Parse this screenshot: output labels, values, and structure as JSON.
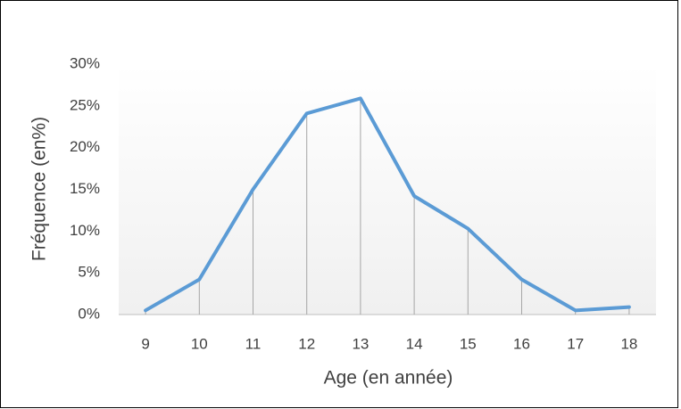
{
  "chart_data": {
    "type": "line",
    "xlabel": "Age (en année)",
    "ylabel": "Fréquence (en%)",
    "categories": [
      "9",
      "10",
      "11",
      "12",
      "13",
      "14",
      "15",
      "16",
      "17",
      "18"
    ],
    "series": [
      {
        "name": "Fréquence",
        "color": "#5b9bd5",
        "values": [
          0.5,
          4.2,
          15,
          24.1,
          25.9,
          14.2,
          10.3,
          4.2,
          0.5,
          0.9
        ]
      }
    ],
    "ylim": [
      0,
      30
    ],
    "yticks": [
      {
        "value": 0,
        "label": "0%"
      },
      {
        "value": 5,
        "label": "5%"
      },
      {
        "value": 10,
        "label": "10%"
      },
      {
        "value": 15,
        "label": "15%"
      },
      {
        "value": 20,
        "label": "20%"
      },
      {
        "value": 25,
        "label": "25%"
      },
      {
        "value": 30,
        "label": "30%"
      }
    ],
    "drop_lines": true
  }
}
